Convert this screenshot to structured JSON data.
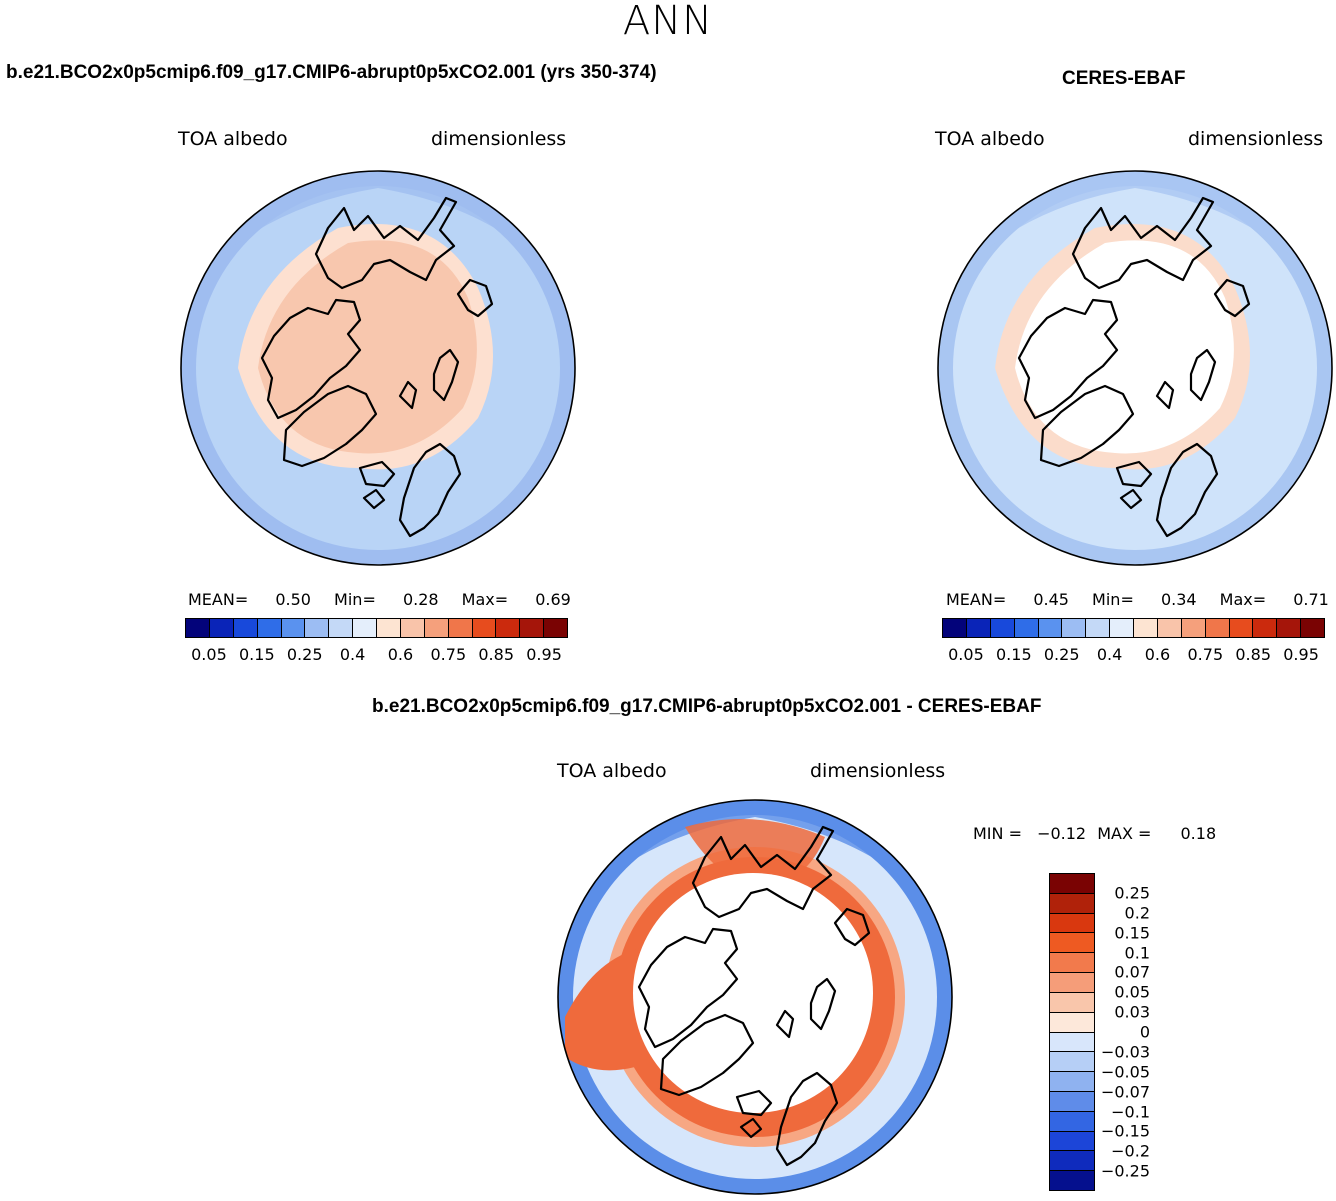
{
  "season": "ANN",
  "panels": [
    {
      "title": "b.e21.BCO2x0p5cmip6.f09_g17.CMIP6-abrupt0p5xCO2.001 (yrs 350-374)",
      "variable": "TOA albedo",
      "units": "dimensionless",
      "stats": {
        "mean_label": "MEAN=",
        "mean": "0.50",
        "min_label": "Min=",
        "min": "0.28",
        "max_label": "Max=",
        "max": "0.69"
      },
      "field": {
        "ocean": "#b9d4f6",
        "ring": "#d3e6fb",
        "outer": "#9fbdf0",
        "cap": "#f8c7ae",
        "cap_edge": "#fde0d0"
      }
    },
    {
      "title": "CERES-EBAF",
      "variable": "TOA albedo",
      "units": "dimensionless",
      "stats": {
        "mean_label": "MEAN=",
        "mean": "0.45",
        "min_label": "Min=",
        "min": "0.34",
        "max_label": "Max=",
        "max": "0.71"
      },
      "field": {
        "ocean": "#cfe3fa",
        "ring": "#d9e8fb",
        "outer": "#a9c6f2",
        "cap": "#ffffff",
        "cap_edge": "#fbdccb"
      }
    },
    {
      "title": "b.e21.BCO2x0p5cmip6.f09_g17.CMIP6-abrupt0p5xCO2.001 - CERES-EBAF",
      "variable": "TOA albedo",
      "units": "dimensionless",
      "stats": {
        "min_label": "MIN =",
        "min": "−0.12",
        "max_label": "MAX =",
        "max": "0.18"
      },
      "field": {
        "ocean": "#d6e6fb",
        "ring": "#ef6a3c",
        "outer": "#5b8ee8",
        "cap": "#ffffff",
        "cap_edge": "#f7a783"
      }
    }
  ],
  "abs_colorbar": {
    "colors": [
      "#03037a",
      "#0a24b8",
      "#1849db",
      "#2f6de8",
      "#5a92ef",
      "#9cbdf3",
      "#c4d9f7",
      "#e4eefb",
      "#fde4d2",
      "#f9c4aa",
      "#f5a07c",
      "#f0764a",
      "#e74c1e",
      "#cb2a0d",
      "#a5150a",
      "#7a0303"
    ],
    "ticks": [
      "0.05",
      "0.15",
      "0.25",
      "0.4",
      "0.6",
      "0.75",
      "0.85",
      "0.95"
    ]
  },
  "diff_colorbar": {
    "colors": [
      "#7a0303",
      "#b0220a",
      "#d9380f",
      "#ee5a22",
      "#f27a4c",
      "#f59d79",
      "#f9c6ab",
      "#fde8da",
      "#d8e6fb",
      "#b6cff6",
      "#8fb2f0",
      "#5f8ce9",
      "#3366e3",
      "#1c45d8",
      "#0f2bbd",
      "#05108e"
    ],
    "ticks": [
      "0.25",
      "0.2",
      "0.15",
      "0.1",
      "0.07",
      "0.05",
      "0.03",
      "0",
      "−0.03",
      "−0.05",
      "−0.07",
      "−0.1",
      "−0.15",
      "−0.2",
      "−0.25"
    ]
  }
}
